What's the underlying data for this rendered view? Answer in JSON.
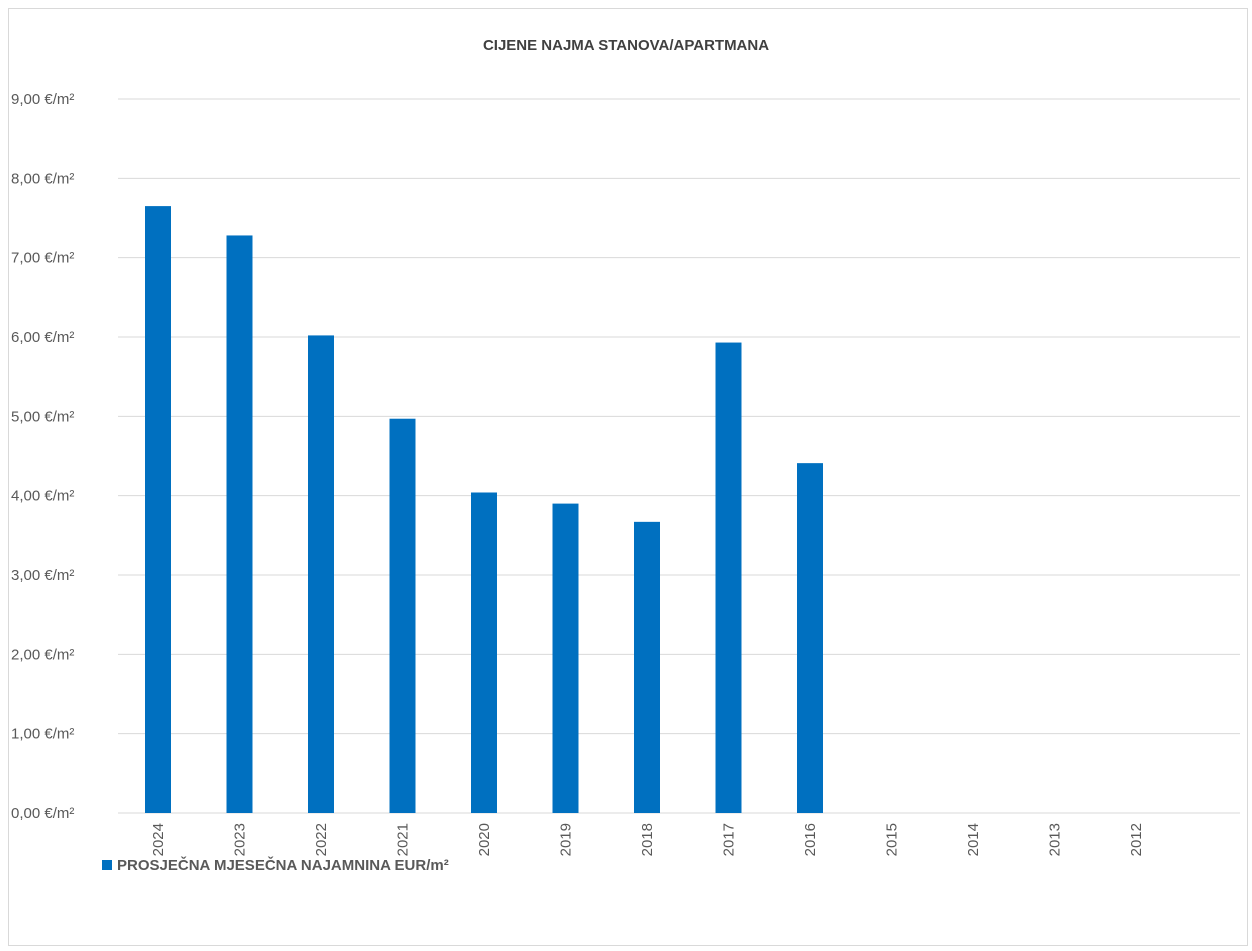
{
  "chart_data": {
    "type": "bar",
    "title": "CIJENE NAJMA STANOVA/APARTMANA",
    "xlabel": "",
    "ylabel": "",
    "categories": [
      "2024",
      "2023",
      "2022",
      "2021",
      "2020",
      "2019",
      "2018",
      "2017",
      "2016",
      "2015",
      "2014",
      "2013",
      "2012"
    ],
    "series": [
      {
        "name": "PROSJEČNA MJESEČNA NAJAMNINA EUR/m²",
        "values": [
          7.65,
          7.28,
          6.02,
          4.97,
          4.04,
          3.9,
          3.67,
          5.93,
          4.41,
          0,
          0,
          0,
          0
        ]
      }
    ],
    "ylim": [
      0,
      9
    ],
    "y_ticks": [
      "0,00 €/m²",
      "1,00 €/m²",
      "2,00 €/m²",
      "3,00 €/m²",
      "4,00 €/m²",
      "5,00 €/m²",
      "6,00 €/m²",
      "7,00 €/m²",
      "8,00 €/m²",
      "9,00 €/m²"
    ],
    "grid": true,
    "legend_position": "bottom-left",
    "colors": {
      "bar": "#0070c0",
      "grid": "#d9d9d9",
      "text": "#595959"
    }
  }
}
